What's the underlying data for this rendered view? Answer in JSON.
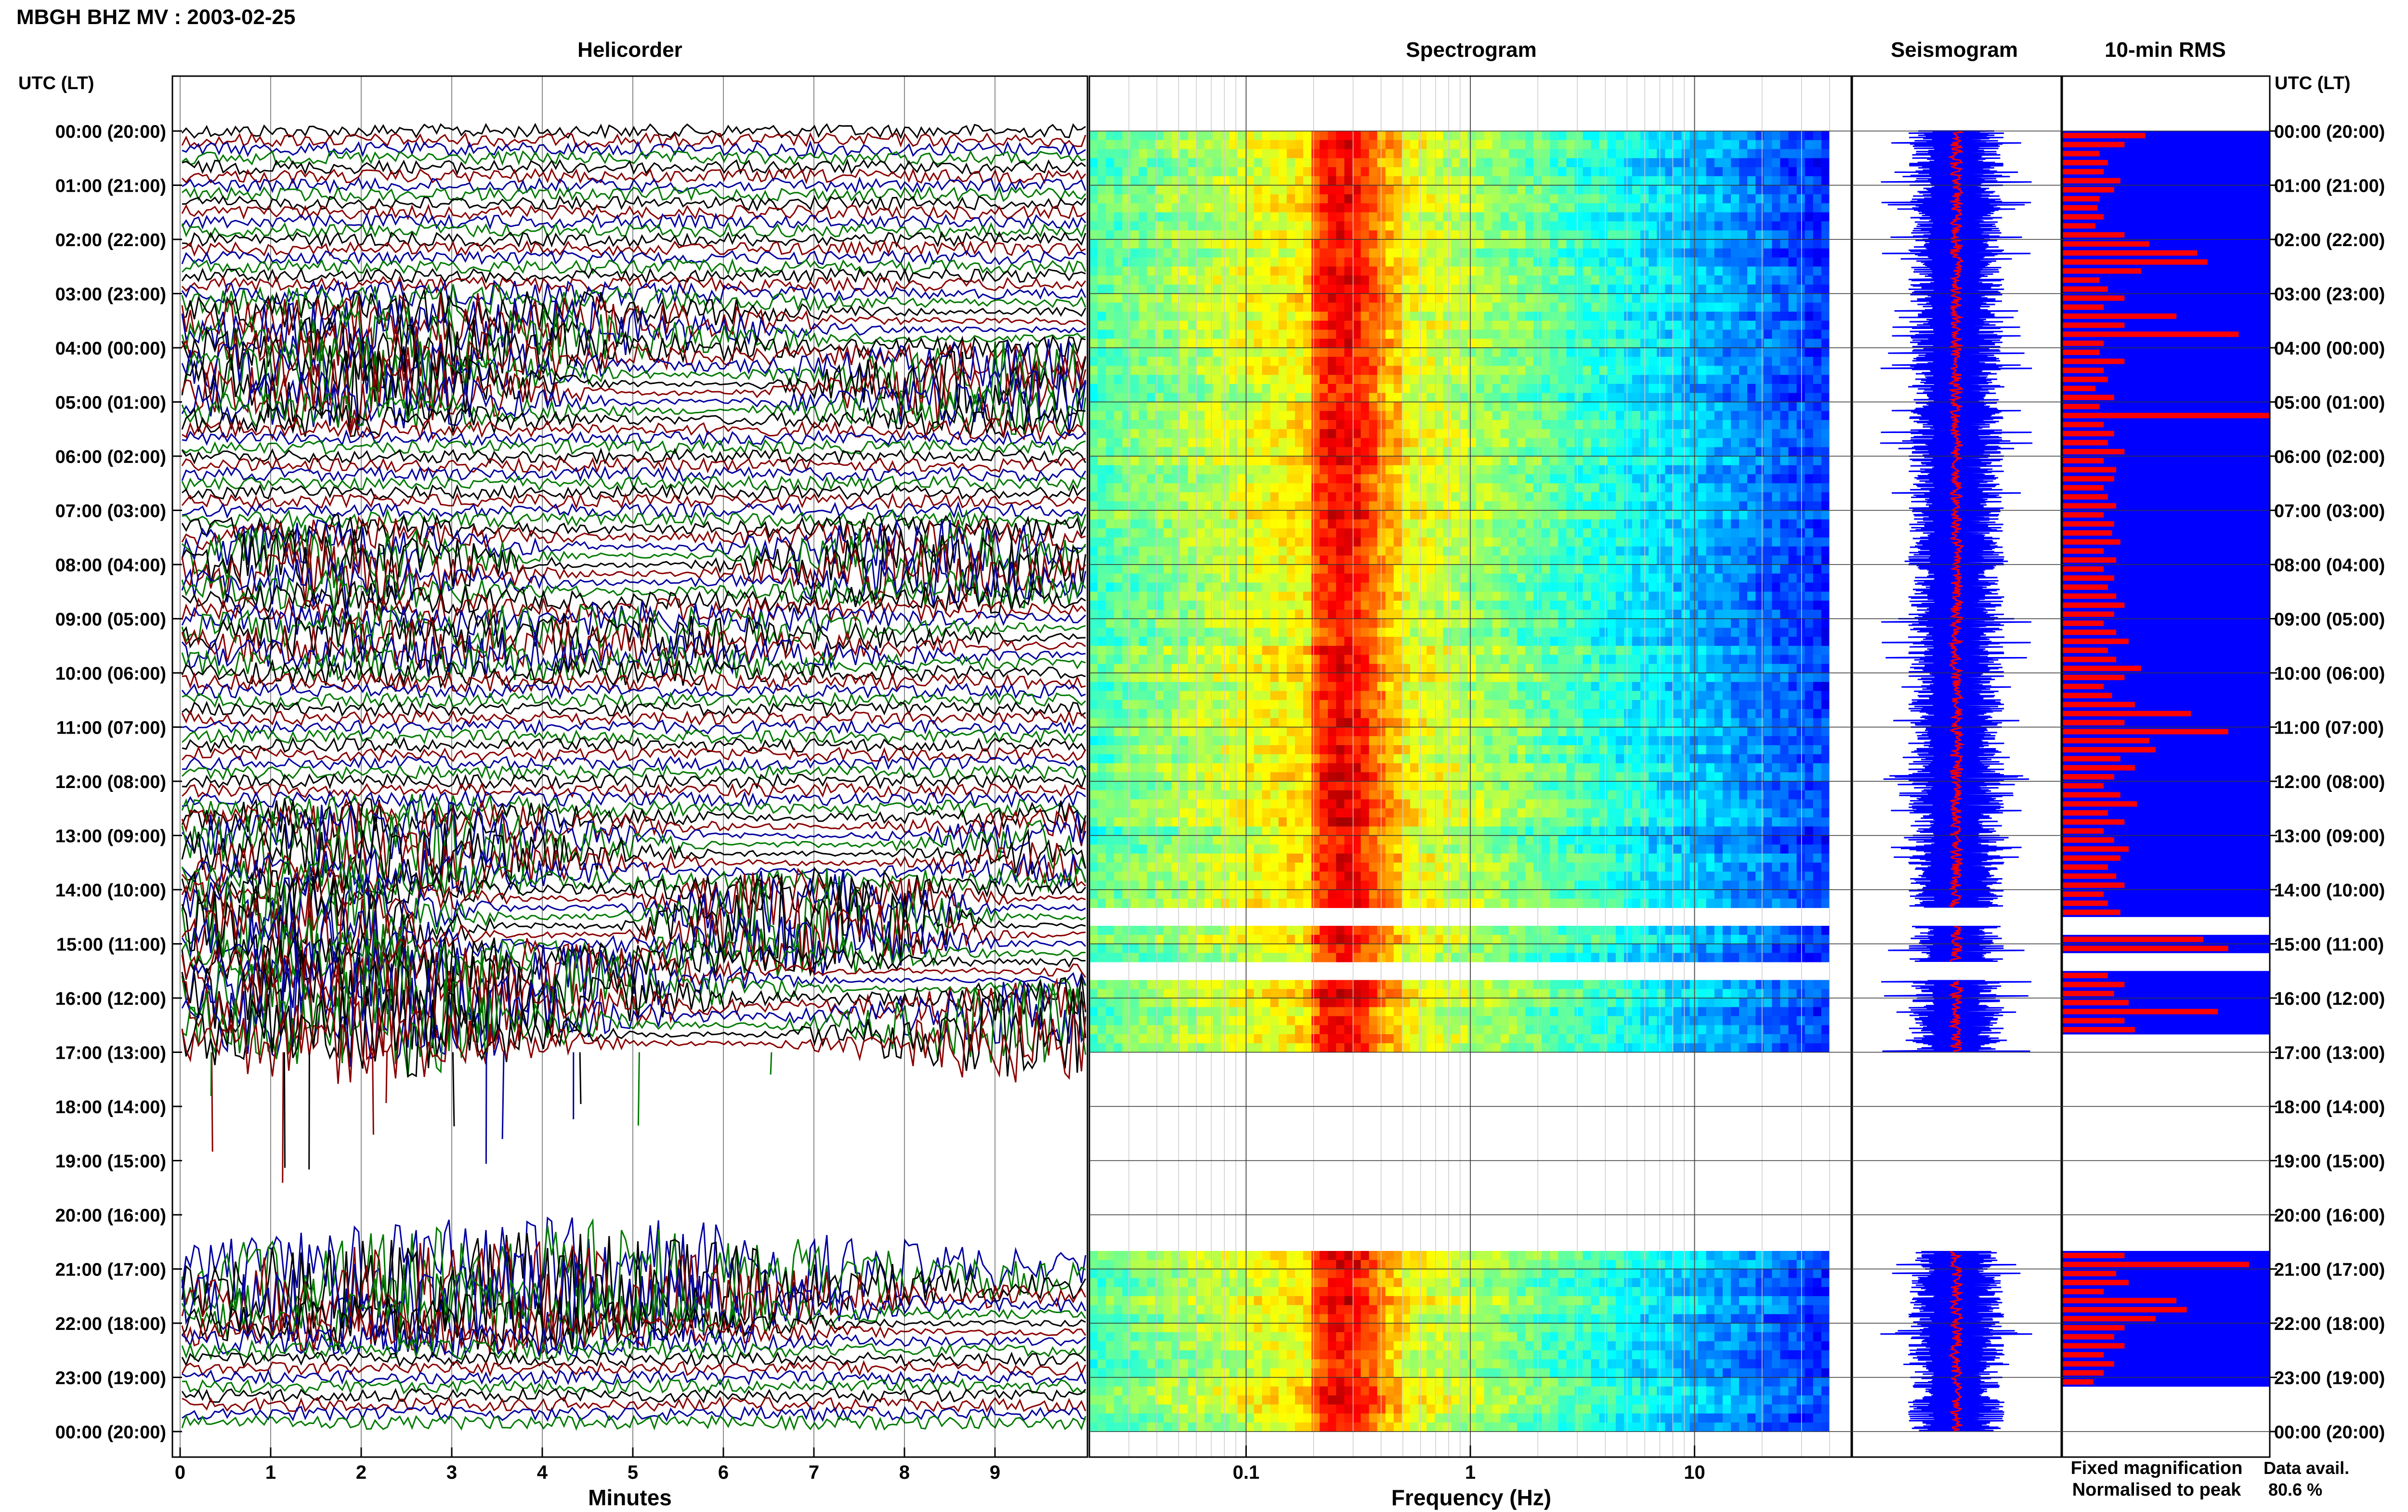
{
  "figure": {
    "title": "MBGH BHZ MV : 2003-02-25",
    "data_availability_label": "Data avail.",
    "data_availability_value": "80.6 %",
    "legend_fixed": "Fixed magnification",
    "legend_normalised": "Normalised to peak"
  },
  "colors": {
    "fixed_magnification": "#0000ff",
    "normalised_to_peak": "#ff0000",
    "trace_cycle": [
      "#000000",
      "#8b0000",
      "#0000a0",
      "#007a00"
    ]
  },
  "chart_data": [
    {
      "type": "line",
      "panel": "helicorder",
      "title": "Helicorder",
      "xlabel": "Minutes",
      "ylabel": "UTC (LT)",
      "xlim": [
        0,
        10
      ],
      "x_ticks": [
        "0",
        "1",
        "2",
        "3",
        "4",
        "5",
        "6",
        "7",
        "8",
        "9"
      ],
      "row_labels_utc_lt": [
        "00:00 (20:00)",
        "01:00 (21:00)",
        "02:00 (22:00)",
        "03:00 (23:00)",
        "04:00 (00:00)",
        "05:00 (01:00)",
        "06:00 (02:00)",
        "07:00 (03:00)",
        "08:00 (04:00)",
        "09:00 (05:00)",
        "10:00 (06:00)",
        "11:00 (07:00)",
        "12:00 (08:00)",
        "13:00 (09:00)",
        "14:00 (10:00)",
        "15:00 (11:00)",
        "16:00 (12:00)",
        "17:00 (13:00)",
        "18:00 (14:00)",
        "19:00 (15:00)",
        "20:00 (16:00)",
        "21:00 (17:00)",
        "22:00 (18:00)",
        "23:00 (19:00)",
        "00:00 (20:00)"
      ],
      "row_minutes": 10,
      "data_gaps_utc": [
        [
          "17:00",
          "21:00"
        ]
      ]
    },
    {
      "type": "heatmap",
      "panel": "spectrogram",
      "title": "Spectrogram",
      "xlabel": "Frequency (Hz)",
      "x_scale": "log",
      "xlim_hz": [
        0.02,
        50
      ],
      "x_ticks": [
        "0.1",
        "1",
        "10"
      ],
      "peak_band_hz": [
        0.2,
        0.5
      ],
      "data_gaps_utc": [
        [
          "14:20",
          "14:40"
        ],
        [
          "15:20",
          "15:40"
        ],
        [
          "17:00",
          "20:40"
        ]
      ]
    },
    {
      "type": "line",
      "panel": "seismogram",
      "title": "Seismogram",
      "data_gaps_utc": [
        [
          "14:20",
          "14:40"
        ],
        [
          "15:20",
          "15:40"
        ],
        [
          "17:00",
          "20:40"
        ]
      ]
    },
    {
      "type": "bar",
      "panel": "rms",
      "title": "10-min RMS",
      "ylabel": "UTC (LT)",
      "interval_minutes": 10,
      "relative_rms_by_interval": [
        0.4,
        0.3,
        0.18,
        0.22,
        0.2,
        0.28,
        0.25,
        0.18,
        0.17,
        0.2,
        0.16,
        0.3,
        0.42,
        0.65,
        0.7,
        0.38,
        0.18,
        0.22,
        0.3,
        0.2,
        0.55,
        0.3,
        0.85,
        0.2,
        0.18,
        0.3,
        0.2,
        0.22,
        0.16,
        0.25,
        0.18,
        1.0,
        0.2,
        0.25,
        0.22,
        0.3,
        0.2,
        0.26,
        0.25,
        0.2,
        0.22,
        0.26,
        0.2,
        0.25,
        0.24,
        0.28,
        0.2,
        0.26,
        0.2,
        0.25,
        0.22,
        0.26,
        0.3,
        0.25,
        0.2,
        0.26,
        0.32,
        0.22,
        0.26,
        0.38,
        0.3,
        0.2,
        0.24,
        0.35,
        0.62,
        0.3,
        0.8,
        0.42,
        0.45,
        0.28,
        0.35,
        0.25,
        0.2,
        0.28,
        0.36,
        0.22,
        0.3,
        0.2,
        0.25,
        0.32,
        0.28,
        0.22,
        0.26,
        0.3,
        0.2,
        0.22,
        0.28,
        null,
        null,
        0.68,
        0.8,
        null,
        null,
        0.22,
        0.3,
        0.25,
        0.32,
        0.75,
        0.3,
        0.35,
        null,
        null,
        null,
        null,
        null,
        null,
        null,
        null,
        null,
        null,
        null,
        null,
        null,
        null,
        null,
        null,
        null,
        null,
        null,
        null,
        null,
        null,
        null,
        null,
        0.3,
        0.9,
        0.26,
        0.32,
        0.2,
        0.55,
        0.6,
        0.45,
        0.3,
        0.25,
        0.3,
        0.2,
        0.25,
        0.2,
        0.15
      ]
    }
  ]
}
